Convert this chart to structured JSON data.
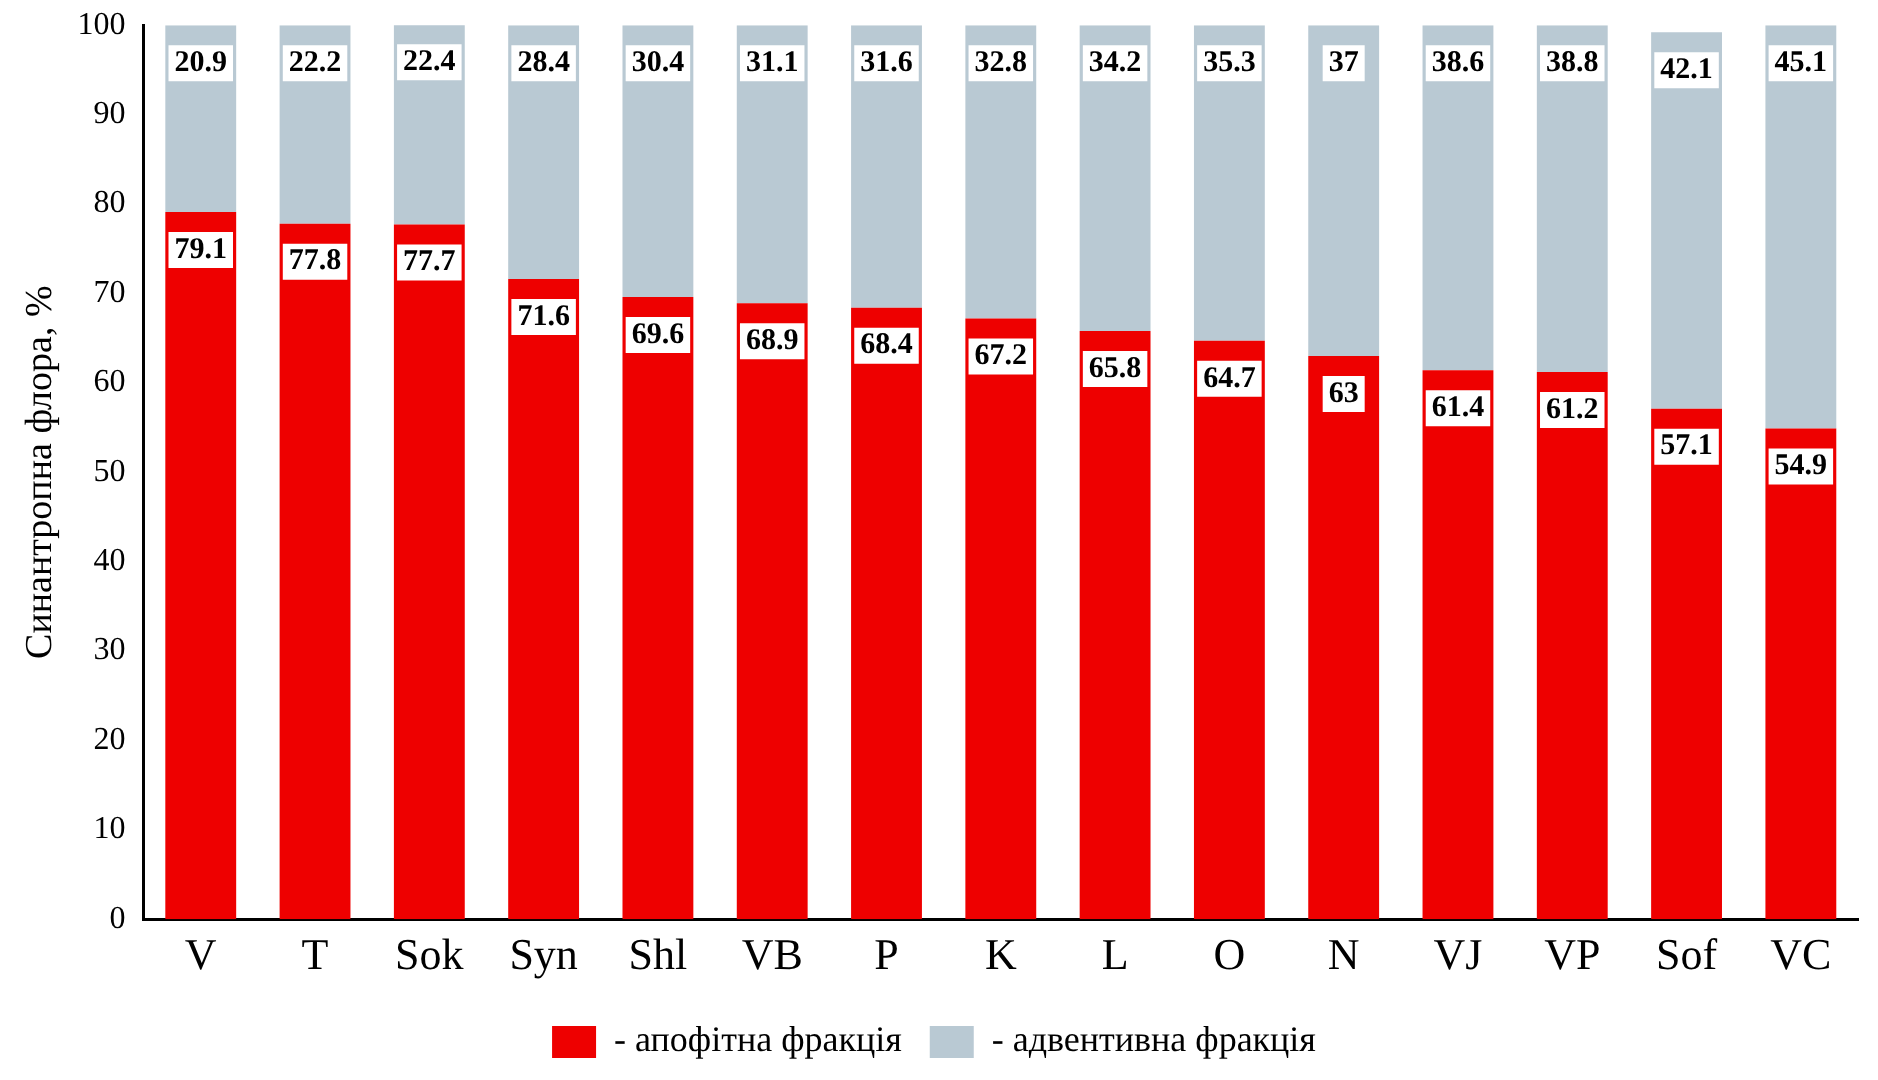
{
  "chart_data": {
    "type": "bar",
    "stacked": true,
    "ylabel": "Синантропна флора, %",
    "categories": [
      "V",
      "T",
      "Sok",
      "Syn",
      "Shl",
      "VB",
      "P",
      "K",
      "L",
      "O",
      "N",
      "VJ",
      "VP",
      "Sof",
      "VC"
    ],
    "series": [
      {
        "name": "- апофітна фракція",
        "color": "#ee0000",
        "values": [
          79.1,
          77.8,
          77.7,
          71.6,
          69.6,
          68.9,
          68.4,
          67.2,
          65.8,
          64.7,
          63,
          61.4,
          61.2,
          57.1,
          54.9
        ]
      },
      {
        "name": "- адвентивна фракція",
        "color": "#b9c9d3",
        "values": [
          20.9,
          22.2,
          22.4,
          28.4,
          30.4,
          31.1,
          31.6,
          32.8,
          34.2,
          35.3,
          37,
          38.6,
          38.8,
          42.1,
          45.1
        ]
      }
    ],
    "ylim": [
      0,
      100
    ],
    "yticks": [
      0,
      10,
      20,
      30,
      40,
      50,
      60,
      70,
      80,
      90,
      100
    ],
    "grid": false,
    "legend": "bottom",
    "data_labels": true
  }
}
